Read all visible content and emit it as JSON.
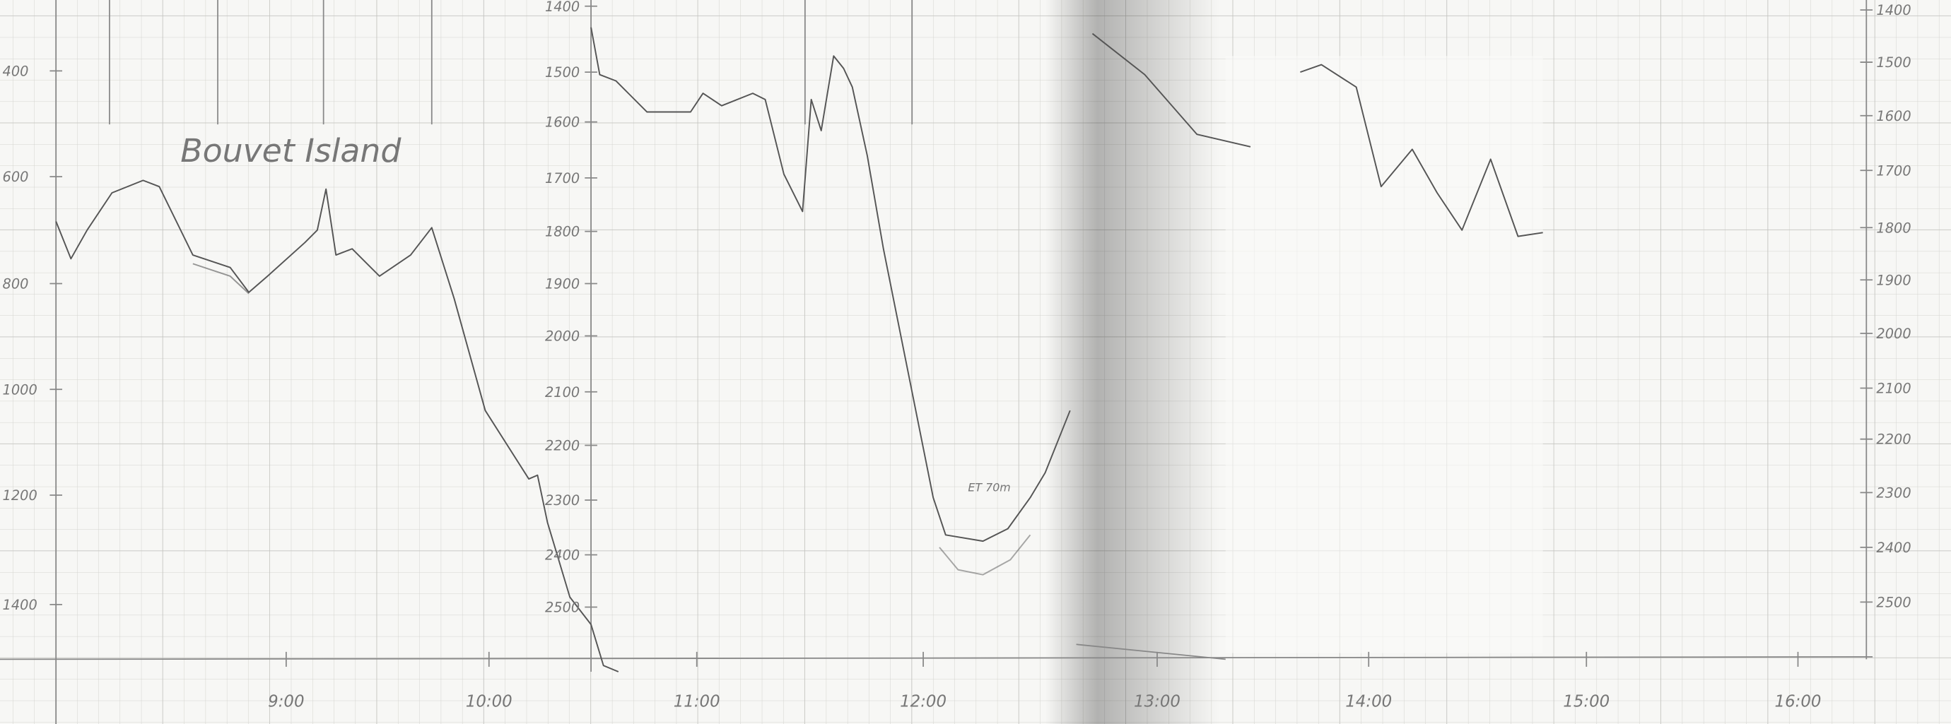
{
  "left_axis": {
    "labels": [
      "400",
      "600",
      "800",
      "1000",
      "1200",
      "1400"
    ]
  },
  "middle_axis": {
    "labels": [
      "1400",
      "1500",
      "1600",
      "1700",
      "1800",
      "1900",
      "2000",
      "2100",
      "2200",
      "2300",
      "2400",
      "2500"
    ]
  },
  "right_axis": {
    "labels": [
      "1400",
      "1500",
      "1600",
      "1700",
      "1800",
      "1900",
      "2000",
      "2100",
      "2200",
      "2300",
      "2400",
      "2500"
    ]
  },
  "time_axis": {
    "labels": [
      "9:00",
      "10:00",
      "11:00",
      "12:00",
      "13:00",
      "14:00",
      "15:00",
      "16:00"
    ]
  },
  "annotations": [
    "Bouvet Island",
    "ET 70m"
  ]
}
